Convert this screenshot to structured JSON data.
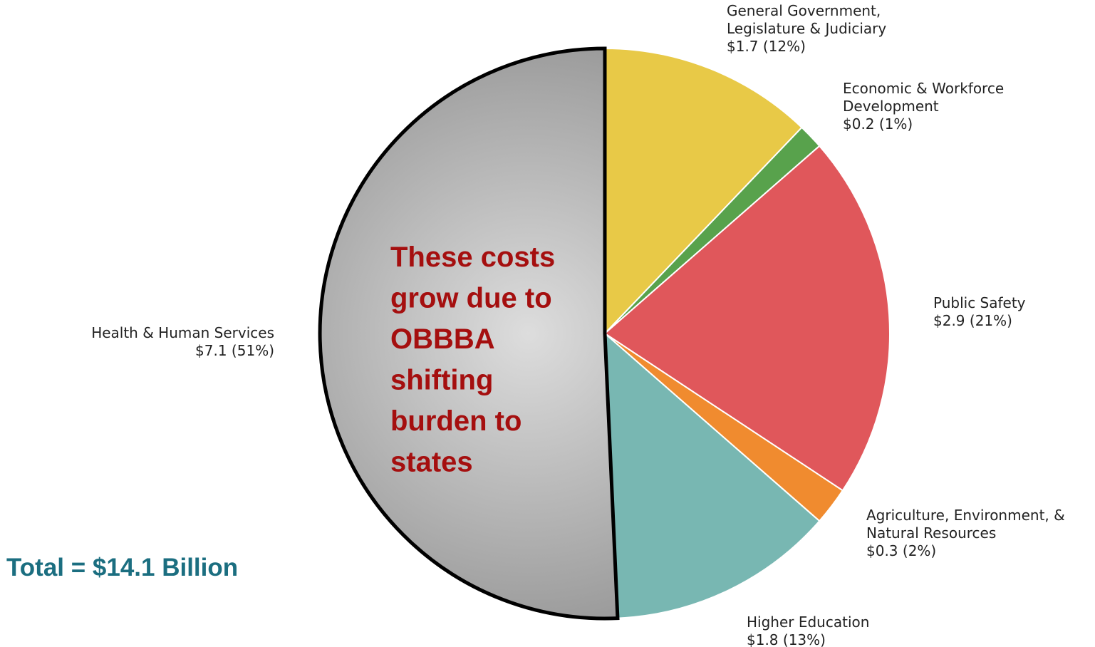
{
  "chart_data": {
    "type": "pie",
    "start": "12 o'clock",
    "direction": "clockwise",
    "slices": [
      {
        "name": "General Government, Legislature & Judiciary",
        "label_lines": [
          "General Government,",
          "Legislature & Judiciary",
          "$1.7 (12%)"
        ],
        "value": 1.7,
        "percent": 12,
        "color": "#e8c947"
      },
      {
        "name": "Economic & Workforce Development",
        "label_lines": [
          "Economic & Workforce",
          "Development",
          "$0.2 (1%)"
        ],
        "value": 0.2,
        "percent": 1,
        "color": "#58a24c"
      },
      {
        "name": "Public Safety",
        "label_lines": [
          "Public Safety",
          "$2.9 (21%)"
        ],
        "value": 2.9,
        "percent": 21,
        "color": "#e0575b"
      },
      {
        "name": "Agriculture, Environment, & Natural Resources",
        "label_lines": [
          "Agriculture, Environment, &",
          "Natural Resources",
          "$0.3 (2%)"
        ],
        "value": 0.3,
        "percent": 2,
        "color": "#f08b2f"
      },
      {
        "name": "Higher Education",
        "label_lines": [
          "Higher Education",
          "$1.8 (13%)"
        ],
        "value": 1.8,
        "percent": 13,
        "color": "#78b7b2"
      },
      {
        "name": "Health & Human Services",
        "label_lines": [
          "Health & Human Services",
          "$7.1 (51%)"
        ],
        "value": 7.1,
        "percent": 51,
        "color": "#c4c4c4",
        "highlighted": true
      }
    ]
  },
  "callout": {
    "lines": [
      "These costs",
      "grow due to",
      "OBBBA",
      "shifting",
      "burden to",
      "states"
    ],
    "color": "#a50f0f"
  },
  "total": {
    "text": "Total = $14.1 Billion",
    "color": "#1b6e80"
  }
}
